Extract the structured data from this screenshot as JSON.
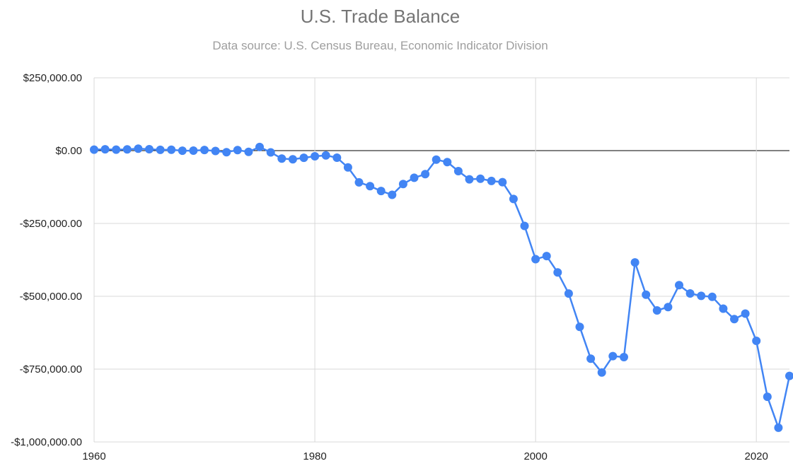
{
  "chart_data": {
    "type": "line",
    "title": "U.S. Trade Balance",
    "subtitle": "Data source: U.S. Census Bureau, Economic Indicator Division",
    "xlabel": "",
    "ylabel": "",
    "xlim": [
      1960,
      2023
    ],
    "ylim": [
      -1000000,
      250000
    ],
    "x_ticks": [
      {
        "value": 1960,
        "label": "1960"
      },
      {
        "value": 1980,
        "label": "1980"
      },
      {
        "value": 2000,
        "label": "2000"
      },
      {
        "value": 2020,
        "label": "2020"
      }
    ],
    "y_ticks": [
      {
        "value": 250000,
        "label": "$250,000.00"
      },
      {
        "value": 0,
        "label": "$0.00"
      },
      {
        "value": -250000,
        "label": "-$250,000.00"
      },
      {
        "value": -500000,
        "label": "-$500,000.00"
      },
      {
        "value": -750000,
        "label": "-$750,000.00"
      },
      {
        "value": -1000000,
        "label": "-$1,000,000.00"
      }
    ],
    "grid": true,
    "line_color": "#4285f4",
    "zero_line_color": "#000000",
    "series": [
      {
        "x": [
          1960,
          1961,
          1962,
          1963,
          1964,
          1965,
          1966,
          1967,
          1968,
          1969,
          1970,
          1971,
          1972,
          1973,
          1974,
          1975,
          1976,
          1977,
          1978,
          1979,
          1980,
          1981,
          1982,
          1983,
          1984,
          1985,
          1986,
          1987,
          1988,
          1989,
          1990,
          1991,
          1992,
          1993,
          1994,
          1995,
          1996,
          1997,
          1998,
          1999,
          2000,
          2001,
          2002,
          2003,
          2004,
          2005,
          2006,
          2007,
          2008,
          2009,
          2010,
          2011,
          2012,
          2013,
          2014,
          2015,
          2016,
          2017,
          2018,
          2019,
          2020,
          2021,
          2022,
          2023
        ],
        "values": [
          3500,
          4500,
          3400,
          4200,
          6800,
          4900,
          2600,
          3100,
          -200,
          100,
          2300,
          -1300,
          -5400,
          1900,
          -4300,
          12400,
          -6100,
          -27200,
          -29800,
          -24600,
          -19400,
          -16200,
          -24200,
          -57800,
          -109100,
          -121900,
          -138500,
          -151700,
          -114600,
          -93100,
          -80900,
          -31100,
          -39200,
          -70300,
          -98500,
          -96400,
          -104100,
          -108300,
          -166100,
          -258600,
          -372500,
          -361800,
          -418200,
          -490600,
          -604900,
          -714200,
          -761700,
          -705400,
          -708700,
          -383800,
          -494700,
          -548600,
          -536800,
          -461900,
          -490300,
          -498500,
          -502000,
          -542500,
          -578500,
          -559400,
          -653000,
          -845000,
          -951200,
          -773400
        ]
      }
    ]
  }
}
